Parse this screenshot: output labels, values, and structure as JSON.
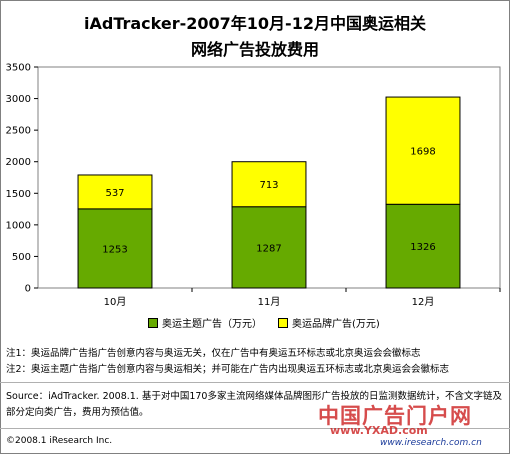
{
  "title_line1": "iAdTracker-2007年10月-12月中国奥运相关",
  "title_line2": "网络广告投放费用",
  "chart_data": {
    "type": "bar",
    "stacked": true,
    "categories": [
      "10月",
      "11月",
      "12月"
    ],
    "series": [
      {
        "name": "奥运主题广告（万元）",
        "values": [
          1253,
          1287,
          1326
        ],
        "color": "#66aa00"
      },
      {
        "name": "奥运品牌广告(万元)",
        "values": [
          537,
          713,
          1698
        ],
        "color": "#ffff00"
      }
    ],
    "ylim": [
      0,
      3500
    ],
    "yticks": [
      0,
      500,
      1000,
      1500,
      2000,
      2500,
      3000,
      3500
    ],
    "grid": false,
    "legend_position": "bottom"
  },
  "notes": [
    "注1：奥运品牌广告指广告创意内容与奥运无关，仅在广告中有奥运五环标志或北京奥运会会徽标志",
    "注2：奥运主题广告指广告创意内容与奥运相关；并可能在广告内出现奥运五环标志或北京奥运会会徽标志"
  ],
  "source": "Source：iAdTracker. 2008.1. 基于对中国170多家主流网络媒体品牌图形广告投放的日监测数据统计，不含文字链及部分定向类广告，费用为预估值。",
  "copyright": "©2008.1 iResearch Inc.",
  "watermark": {
    "logo_text": "中国广告门户网",
    "url_text": "www.YXAD.com",
    "site_text": "www.iresearch.com.cn"
  }
}
